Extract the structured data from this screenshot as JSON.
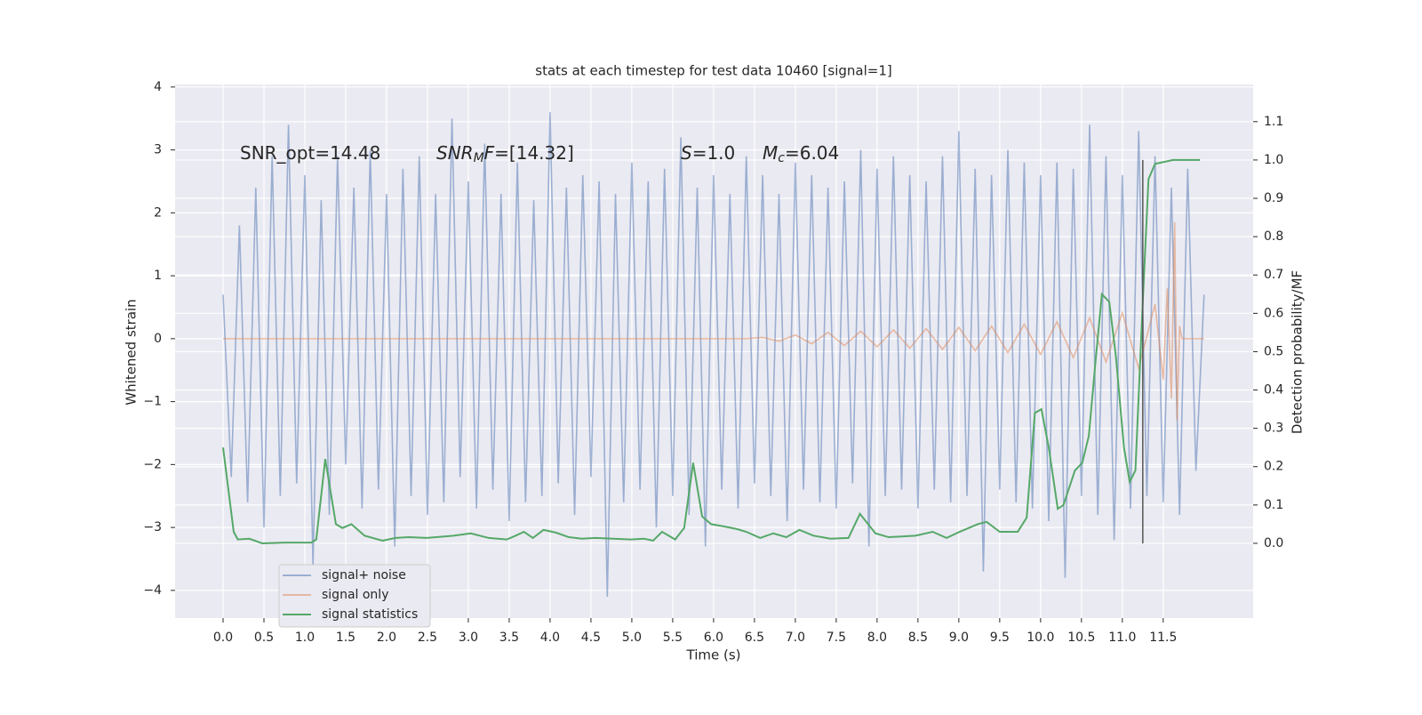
{
  "chart_data": {
    "type": "line",
    "title": "stats at each timestep for test data 10460 [signal=1]",
    "x_label": "Time (s)",
    "y_label": "Whitened strain",
    "y2_label": "Detection probability/MF",
    "xlim": [
      -0.587,
      12.6
    ],
    "ylim": [
      -4.44,
      4.04
    ],
    "y2lim": [
      -0.195,
      1.197
    ],
    "xticks": [
      {
        "value": 0,
        "label": "0.0"
      },
      0.5,
      {
        "value": 1,
        "label": "1.0"
      },
      1.5,
      {
        "value": 2,
        "label": "2.0"
      },
      2.5,
      {
        "value": 3,
        "label": "3.0"
      },
      3.5,
      {
        "value": 4,
        "label": "4.0"
      },
      4.5,
      {
        "value": 5,
        "label": "5.0"
      },
      5.5,
      {
        "value": 6,
        "label": "6.0"
      },
      6.5,
      {
        "value": 7,
        "label": "7.0"
      },
      7.5,
      {
        "value": 8,
        "label": "8.0"
      },
      8.5,
      {
        "value": 9,
        "label": "9.0"
      },
      9.5,
      {
        "value": 10,
        "label": "10.0"
      },
      10.5,
      {
        "value": 11,
        "label": "11.0"
      },
      11.5
    ],
    "yticks": [
      {
        "value": -4,
        "label": "−4"
      },
      {
        "value": -3,
        "label": "−3"
      },
      {
        "value": -2,
        "label": "−2"
      },
      {
        "value": -1,
        "label": "−1"
      },
      0,
      1,
      2,
      3,
      4
    ],
    "y2ticks": [
      {
        "value": 0,
        "label": "0.0"
      },
      0.1,
      0.2,
      0.3,
      0.4,
      0.5,
      0.6,
      0.7,
      0.8,
      0.9,
      {
        "value": 1,
        "label": "1.0"
      },
      1.1
    ],
    "grid": true,
    "legend": "lower left",
    "annotations": [
      [
        {
          "text": "SNR_opt=14.48",
          "style": "normal"
        }
      ],
      [
        {
          "text": "SNR",
          "style": "italic"
        },
        {
          "text": "M",
          "style": "sub"
        },
        {
          "text": "F",
          "style": "italic"
        },
        {
          "text": "=[14.32]",
          "style": "normal"
        }
      ],
      [
        {
          "text": "S",
          "style": "italic"
        },
        {
          "text": "=1.0",
          "style": "normal"
        }
      ],
      [
        {
          "text": "M",
          "style": "italic"
        },
        {
          "text": "c",
          "style": "sub"
        },
        {
          "text": "=6.04",
          "style": "normal"
        }
      ]
    ],
    "vertical_line": {
      "x": 11.25,
      "ymin": 0,
      "ymax": 1,
      "axis": "y2",
      "color": "#555555"
    },
    "series": [
      {
        "name": "signal+ noise",
        "color": "#4c72b0",
        "opacity": 0.5,
        "x": [
          0,
          0.1,
          0.2,
          0.3,
          0.4,
          0.5,
          0.6,
          0.7,
          0.8,
          0.9,
          1,
          1.1,
          1.2,
          1.3,
          1.4,
          1.5,
          1.6,
          1.7,
          1.8,
          1.9,
          2,
          2.1,
          2.2,
          2.3,
          2.4,
          2.5,
          2.6,
          2.7,
          2.8,
          2.9,
          3,
          3.1,
          3.2,
          3.3,
          3.4,
          3.5,
          3.6,
          3.7,
          3.8,
          3.9,
          4,
          4.1,
          4.2,
          4.3,
          4.4,
          4.5,
          4.6,
          4.7,
          4.8,
          4.9,
          5,
          5.1,
          5.2,
          5.3,
          5.4,
          5.5,
          5.6,
          5.7,
          5.8,
          5.9,
          6,
          6.1,
          6.2,
          6.3,
          6.4,
          6.5,
          6.6,
          6.7,
          6.8,
          6.9,
          7,
          7.1,
          7.2,
          7.3,
          7.4,
          7.5,
          7.6,
          7.7,
          7.8,
          7.9,
          8,
          8.1,
          8.2,
          8.3,
          8.4,
          8.5,
          8.6,
          8.7,
          8.8,
          8.9,
          9,
          9.1,
          9.2,
          9.3,
          9.4,
          9.5,
          9.6,
          9.7,
          9.8,
          9.9,
          10,
          10.1,
          10.2,
          10.3,
          10.4,
          10.5,
          10.6,
          10.7,
          10.8,
          10.9,
          11,
          11.1,
          11.2,
          11.3,
          11.4,
          11.5,
          11.6,
          11.7,
          11.8,
          11.9,
          12
        ],
        "values": [
          0.7,
          -2.2,
          1.8,
          -2.6,
          2.4,
          -3.0,
          2.9,
          -2.5,
          3.4,
          -2.3,
          2.6,
          -3.6,
          2.2,
          -2.8,
          2.9,
          -2.0,
          2.4,
          -2.7,
          3.0,
          -2.4,
          2.3,
          -3.3,
          2.7,
          -2.5,
          2.9,
          -2.8,
          2.3,
          -2.6,
          3.5,
          -2.2,
          2.5,
          -2.7,
          3.1,
          -2.4,
          2.3,
          -2.9,
          2.8,
          -2.6,
          2.2,
          -2.5,
          3.6,
          -2.3,
          2.4,
          -2.8,
          2.6,
          -2.2,
          2.5,
          -4.1,
          2.3,
          -2.6,
          2.8,
          -2.4,
          2.5,
          -3.0,
          2.7,
          -2.5,
          3.2,
          -2.8,
          2.4,
          -3.3,
          2.6,
          -2.4,
          2.3,
          -2.7,
          2.9,
          -2.3,
          2.6,
          -2.5,
          2.3,
          -2.9,
          2.8,
          -2.4,
          2.6,
          -2.6,
          2.4,
          -2.7,
          2.5,
          -2.3,
          3.0,
          -3.3,
          2.7,
          -2.5,
          2.9,
          -2.4,
          2.6,
          -2.7,
          2.5,
          -2.4,
          2.9,
          -2.6,
          3.3,
          -2.5,
          2.7,
          -3.7,
          2.6,
          -2.4,
          3.0,
          -2.6,
          2.8,
          -2.7,
          2.6,
          -2.9,
          2.8,
          -3.8,
          2.7,
          -2.5,
          3.4,
          -2.8,
          2.9,
          -3.2,
          2.6,
          -2.7,
          3.3,
          -2.5,
          2.9,
          -2.6,
          2.4,
          -2.8,
          2.7,
          -2.1,
          0.7
        ]
      },
      {
        "name": "signal only",
        "color": "#dd8452",
        "opacity": 0.5,
        "x": [
          0,
          6.4,
          6.6,
          6.8,
          7,
          7.2,
          7.4,
          7.6,
          7.8,
          8,
          8.2,
          8.4,
          8.6,
          8.8,
          9,
          9.2,
          9.4,
          9.6,
          9.8,
          10,
          10.2,
          10.4,
          10.6,
          10.8,
          11,
          11.2,
          11.4,
          11.5,
          11.55,
          11.6,
          11.64,
          11.67,
          11.7,
          11.73,
          12
        ],
        "values": [
          0,
          0,
          0.02,
          -0.04,
          0.06,
          -0.08,
          0.1,
          -0.11,
          0.12,
          -0.13,
          0.14,
          -0.15,
          0.16,
          -0.17,
          0.18,
          -0.19,
          0.2,
          -0.22,
          0.23,
          -0.25,
          0.27,
          -0.3,
          0.33,
          -0.37,
          0.41,
          -0.47,
          0.55,
          -0.65,
          0.8,
          -0.95,
          1.85,
          -1.3,
          0.2,
          0,
          0
        ]
      },
      {
        "name": "signal statistics",
        "color": "#55a868",
        "opacity": 1,
        "axis": "y2",
        "x": [
          0,
          0.13,
          0.18,
          0.32,
          0.48,
          0.75,
          1.08,
          1.14,
          1.25,
          1.38,
          1.46,
          1.57,
          1.73,
          1.95,
          2.11,
          2.27,
          2.49,
          2.82,
          3.03,
          3.25,
          3.47,
          3.58,
          3.68,
          3.79,
          3.92,
          4.07,
          4.23,
          4.39,
          4.55,
          4.77,
          4.99,
          5.15,
          5.26,
          5.37,
          5.53,
          5.64,
          5.75,
          5.86,
          5.97,
          6.13,
          6.29,
          6.4,
          6.57,
          6.73,
          6.89,
          7.05,
          7.22,
          7.43,
          7.65,
          7.79,
          7.98,
          8.14,
          8.47,
          8.68,
          8.85,
          9.01,
          9.23,
          9.34,
          9.5,
          9.72,
          9.83,
          9.93,
          10.01,
          10.1,
          10.21,
          10.28,
          10.42,
          10.51,
          10.59,
          10.67,
          10.75,
          10.84,
          10.92,
          11.02,
          11.09,
          11.16,
          11.25,
          11.32,
          11.4,
          11.62,
          11.95
        ],
        "values": [
          0.25,
          0.03,
          0.01,
          0.012,
          0.0,
          0.002,
          0.002,
          0.01,
          0.22,
          0.05,
          0.04,
          0.05,
          0.02,
          0.007,
          0.014,
          0.016,
          0.014,
          0.02,
          0.026,
          0.014,
          0.01,
          0.02,
          0.03,
          0.014,
          0.035,
          0.028,
          0.016,
          0.012,
          0.014,
          0.012,
          0.01,
          0.012,
          0.007,
          0.03,
          0.01,
          0.04,
          0.21,
          0.07,
          0.05,
          0.044,
          0.037,
          0.03,
          0.014,
          0.026,
          0.016,
          0.035,
          0.02,
          0.012,
          0.014,
          0.077,
          0.026,
          0.016,
          0.02,
          0.03,
          0.014,
          0.03,
          0.05,
          0.056,
          0.03,
          0.03,
          0.067,
          0.34,
          0.35,
          0.25,
          0.09,
          0.1,
          0.19,
          0.21,
          0.28,
          0.47,
          0.65,
          0.63,
          0.49,
          0.25,
          0.16,
          0.19,
          0.63,
          0.95,
          0.99,
          1.0,
          1.0
        ]
      }
    ]
  }
}
